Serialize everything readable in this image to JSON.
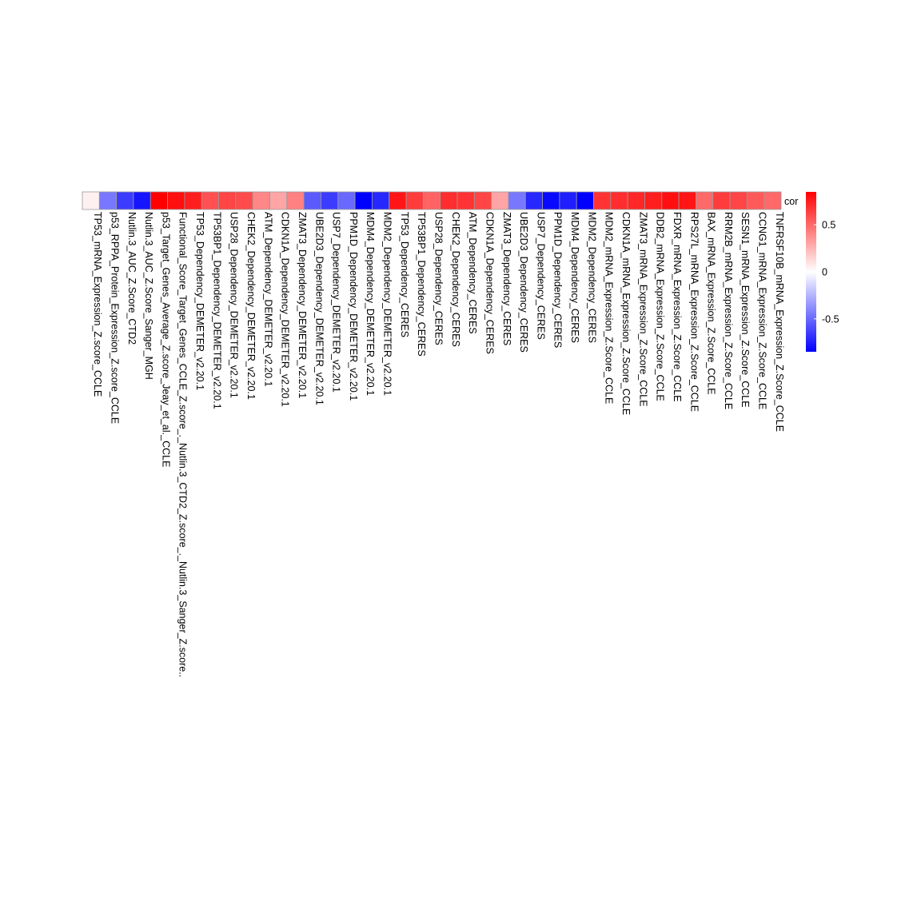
{
  "chart_data": {
    "type": "heatmap",
    "row_label": "cor",
    "columns": [
      "TP53_mRNA_Expression_Z.score_CCLE",
      "p53_RPPA_Protein_Expression_Z.score_CCLE",
      "Nutlin.3_AUC_Z.Score_CTD2",
      "Nutlin.3_AUC_Z.Score_Sanger_MGH",
      "p53_Target_Genes_Average_Z.score_Jeay_et_al._CCLE",
      "Functional_Score_Target_Genes_CCLE_Z.score_._Nutlin.3_CTD2_Z.score_._Nutlin.3_Sanger_Z.score..",
      "TP53_Dependency_DEMETER_v2.20.1",
      "TP53BP1_Dependency_DEMETER_v2.20.1",
      "USP28_Dependency_DEMETER_v2.20.1",
      "CHEK2_Dependency_DEMETER_v2.20.1",
      "ATM_Dependency_DEMETER_v2.20.1",
      "CDKN1A_Dependency_DEMETER_v2.20.1",
      "ZMAT3_Dependency_DEMETER_v2.20.1",
      "UBE2D3_Dependency_DEMETER_v2.20.1",
      "USP7_Dependency_DEMETER_v2.20.1",
      "PPM1D_Dependency_DEMETER_v2.20.1",
      "MDM4_Dependency_DEMETER_v2.20.1",
      "MDM2_Dependency_DEMETER_v2.20.1",
      "TP53_Dependency_CERES",
      "TP53BP1_Dependency_CERES",
      "USP28_Dependency_CERES",
      "CHEK2_Dependency_CERES",
      "ATM_Dependency_CERES",
      "CDKN1A_Dependency_CERES",
      "ZMAT3_Dependency_CERES",
      "UBE2D3_Dependency_CERES",
      "USP7_Dependency_CERES",
      "PPM1D_Dependency_CERES",
      "MDM4_Dependency_CERES",
      "MDM2_Dependency_CERES",
      "MDM2_mRNA_Expression_Z.Score_CCLE",
      "CDKN1A_mRNA_Expression_Z.Score_CCLE",
      "ZMAT3_mRNA_Expression_Z.Score_CCLE",
      "DDB2_mRNA_Expression_Z.Score_CCLE",
      "FDXR_mRNA_Expression_Z.Score_CCLE",
      "RPS27L_mRNA_Expression_Z.Score_CCLE",
      "BAX_mRNA_Expression_Z.Score_CCLE",
      "RRM2B_mRNA_Expression_Z.Score_CCLE",
      "SESN1_mRNA_Expression_Z.Score_CCLE",
      "CCNG1_mRNA_Expression_Z.Score_CCLE",
      "TNFRSF10B_mRNA_Expression_Z.Score_CCLE"
    ],
    "values": [
      0.05,
      -0.45,
      -0.65,
      -0.78,
      0.88,
      0.8,
      0.75,
      0.58,
      0.62,
      0.6,
      0.4,
      0.3,
      0.42,
      -0.55,
      -0.65,
      -0.5,
      -0.88,
      -0.72,
      0.78,
      0.65,
      0.52,
      0.7,
      0.68,
      0.62,
      0.3,
      -0.45,
      -0.72,
      -0.82,
      -0.75,
      -0.98,
      0.68,
      0.7,
      0.72,
      0.75,
      0.8,
      0.78,
      0.5,
      0.65,
      0.62,
      0.55,
      0.5
    ],
    "legend": {
      "ticks": [
        0.5,
        0,
        -0.5
      ],
      "tick_labels": [
        "0.5",
        "0",
        "-0.5"
      ],
      "range": [
        -0.85,
        0.85
      ],
      "colors": {
        "low": "#0000ff",
        "mid": "#ffffff",
        "high": "#ff0000"
      }
    }
  }
}
